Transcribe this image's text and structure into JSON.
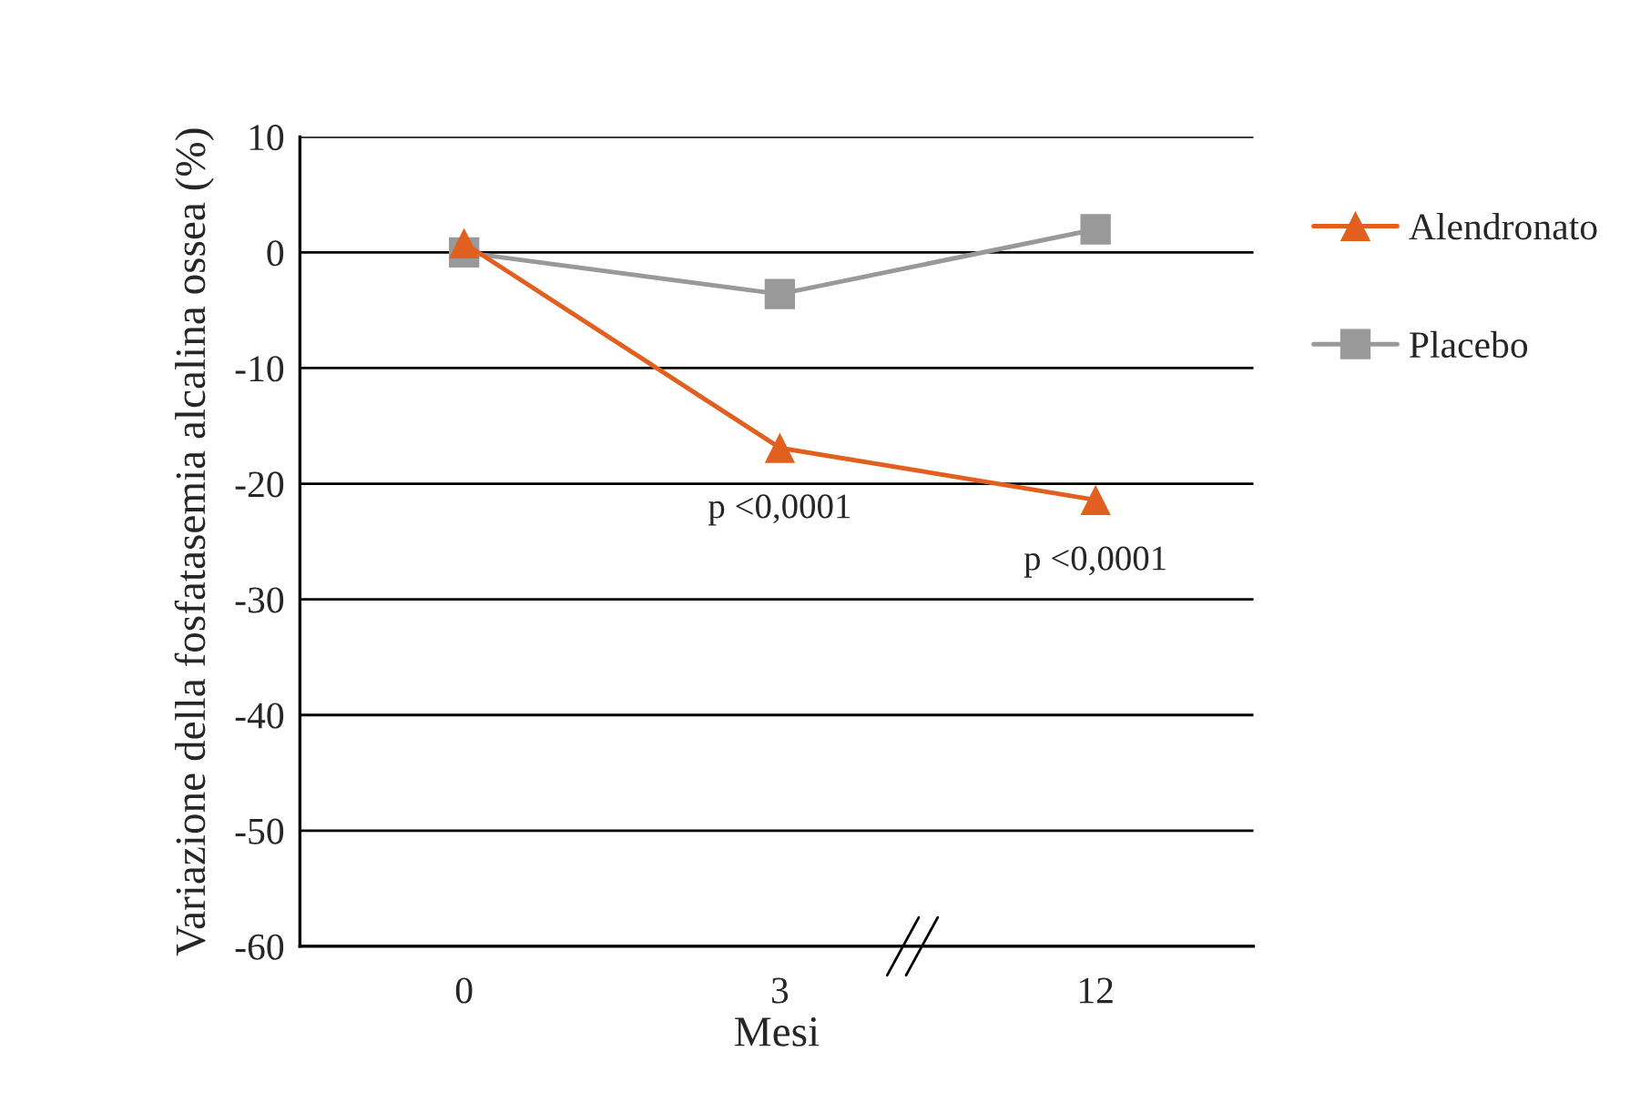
{
  "chart_data": {
    "type": "line",
    "xlabel": "Mesi",
    "ylabel": "Variazione della fosfatasemia alcalina ossea (%)",
    "categories": [
      "0",
      "3",
      "12"
    ],
    "series": [
      {
        "name": "Alendronato",
        "color": "#e2601f",
        "marker": "triangle",
        "values": [
          0.8,
          -16.9,
          -21.4
        ]
      },
      {
        "name": "Placebo",
        "color": "#999999",
        "marker": "square",
        "values": [
          0.0,
          -3.6,
          2.0
        ]
      }
    ],
    "ylim": [
      -60,
      10
    ],
    "yticks": [
      -60,
      -50,
      -40,
      -30,
      -20,
      -10,
      0,
      10
    ],
    "grid": "y",
    "legend": "right",
    "line_style": "solid",
    "annotations": [
      {
        "text": "p <0,0001",
        "x": "3",
        "y": -16.9
      },
      {
        "text": "p <0,0001",
        "x": "12",
        "y": -21.4
      }
    ]
  }
}
